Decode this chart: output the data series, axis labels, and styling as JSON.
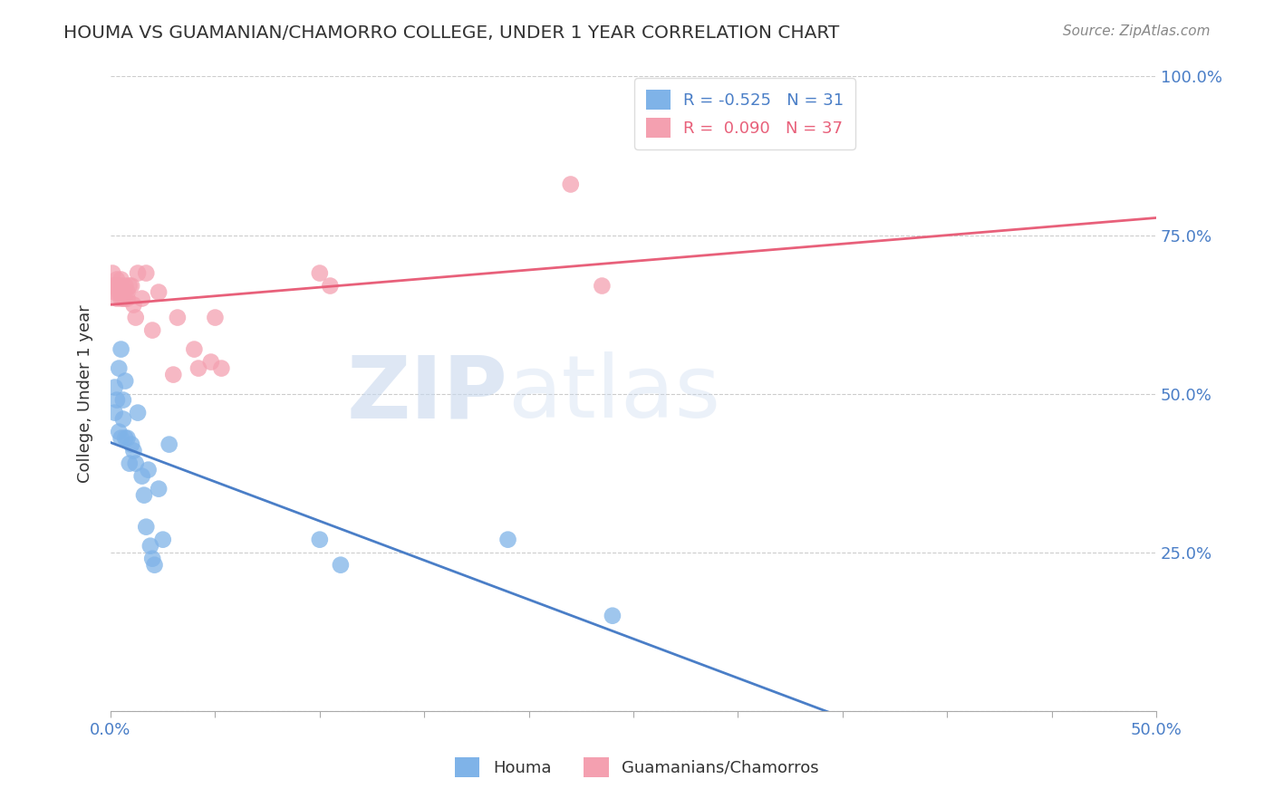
{
  "title": "HOUMA VS GUAMANIAN/CHAMORRO COLLEGE, UNDER 1 YEAR CORRELATION CHART",
  "source": "Source: ZipAtlas.com",
  "ylabel": "College, Under 1 year",
  "legend_labels": [
    "Houma",
    "Guamanians/Chamorros"
  ],
  "houma_R": -0.525,
  "houma_N": 31,
  "guam_R": 0.09,
  "guam_N": 37,
  "xlim": [
    0.0,
    0.5
  ],
  "ylim": [
    0.0,
    1.0
  ],
  "yticks": [
    0.0,
    0.25,
    0.5,
    0.75,
    1.0
  ],
  "ytick_labels": [
    "",
    "25.0%",
    "50.0%",
    "75.0%",
    "100.0%"
  ],
  "houma_color": "#7fb3e8",
  "guam_color": "#f4a0b0",
  "houma_line_color": "#4a7ec7",
  "guam_line_color": "#e8607a",
  "background_color": "#ffffff",
  "grid_color": "#cccccc",
  "title_color": "#333333",
  "houma_x": [
    0.002,
    0.002,
    0.003,
    0.004,
    0.004,
    0.005,
    0.005,
    0.006,
    0.006,
    0.007,
    0.007,
    0.008,
    0.009,
    0.01,
    0.011,
    0.012,
    0.013,
    0.015,
    0.016,
    0.017,
    0.018,
    0.019,
    0.02,
    0.021,
    0.023,
    0.025,
    0.028,
    0.1,
    0.11,
    0.19,
    0.24
  ],
  "houma_y": [
    0.51,
    0.47,
    0.49,
    0.54,
    0.44,
    0.57,
    0.43,
    0.46,
    0.49,
    0.43,
    0.52,
    0.43,
    0.39,
    0.42,
    0.41,
    0.39,
    0.47,
    0.37,
    0.34,
    0.29,
    0.38,
    0.26,
    0.24,
    0.23,
    0.35,
    0.27,
    0.42,
    0.27,
    0.23,
    0.27,
    0.15
  ],
  "guam_x": [
    0.001,
    0.001,
    0.002,
    0.002,
    0.003,
    0.003,
    0.004,
    0.004,
    0.005,
    0.005,
    0.005,
    0.006,
    0.006,
    0.007,
    0.007,
    0.008,
    0.008,
    0.009,
    0.01,
    0.011,
    0.012,
    0.013,
    0.015,
    0.017,
    0.02,
    0.023,
    0.03,
    0.032,
    0.04,
    0.042,
    0.048,
    0.05,
    0.053,
    0.1,
    0.105,
    0.22,
    0.235
  ],
  "guam_y": [
    0.67,
    0.69,
    0.67,
    0.66,
    0.68,
    0.65,
    0.67,
    0.66,
    0.68,
    0.65,
    0.67,
    0.66,
    0.65,
    0.67,
    0.65,
    0.66,
    0.65,
    0.67,
    0.67,
    0.64,
    0.62,
    0.69,
    0.65,
    0.69,
    0.6,
    0.66,
    0.53,
    0.62,
    0.57,
    0.54,
    0.55,
    0.62,
    0.54,
    0.69,
    0.67,
    0.83,
    0.67
  ]
}
